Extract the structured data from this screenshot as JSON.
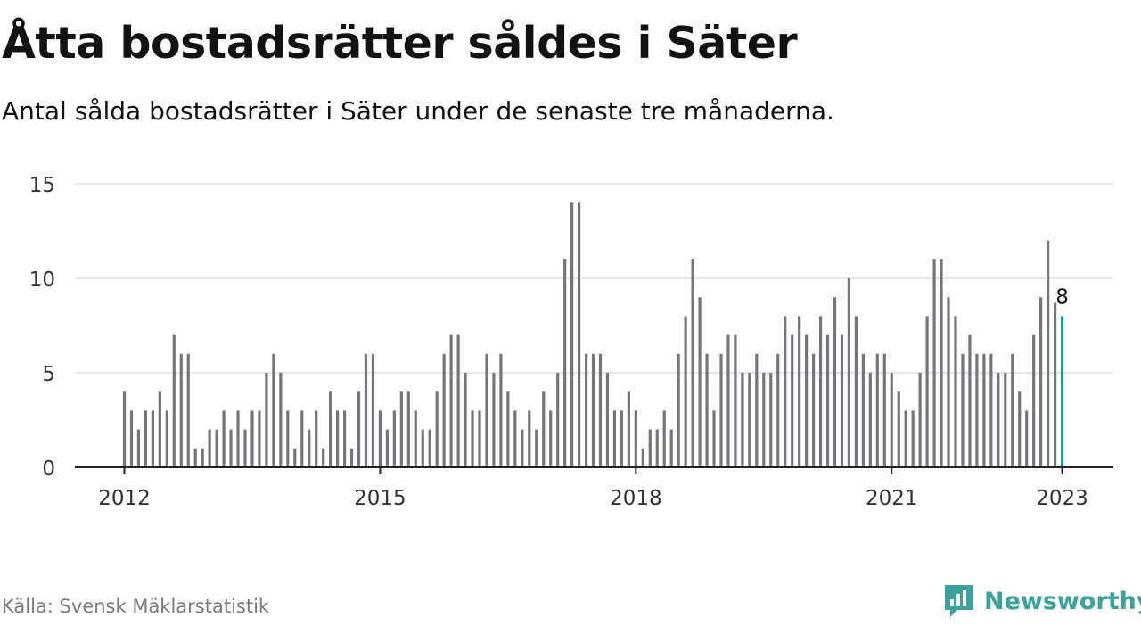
{
  "header": {
    "title": "Åtta bostadsrätter såldes i Säter",
    "subtitle": "Antal sålda bostadsrätter i Säter under de senaste tre månaderna."
  },
  "footer": {
    "source": "Källa: Svensk Mäklarstatistik",
    "brand": "Newsworthy",
    "brand_icon": "newsworthy-logo-icon"
  },
  "colors": {
    "bar": "#75757c",
    "highlight": "#1a9b95",
    "grid": "#dddddd",
    "axis": "#222222",
    "brand": "#3aa39a"
  },
  "chart_data": {
    "type": "bar",
    "title": "Åtta bostadsrätter såldes i Säter",
    "subtitle": "Antal sålda bostadsrätter i Säter under de senaste tre månaderna.",
    "x_start": "2012-01",
    "x_interval": "month",
    "x_ticks": [
      "2012",
      "2015",
      "2018",
      "2021",
      "2023"
    ],
    "y_ticks": [
      0,
      5,
      10,
      15
    ],
    "ylim": [
      0,
      15
    ],
    "grid": true,
    "highlight_label": "8",
    "series": [
      {
        "values": [
          4,
          3,
          2,
          3,
          3,
          4,
          3,
          7,
          6,
          6,
          1,
          1,
          2,
          2,
          3,
          2,
          3,
          2,
          3,
          3,
          5,
          6,
          5,
          3,
          1,
          3,
          2,
          3,
          1,
          4,
          3,
          3,
          1,
          4,
          6,
          6,
          3,
          2,
          3,
          4,
          4,
          3,
          2,
          2,
          4,
          6,
          7,
          7,
          5,
          3,
          3,
          6,
          5,
          6,
          4,
          3,
          2,
          3,
          2,
          4,
          3,
          5,
          11,
          14,
          14,
          6,
          6,
          6,
          5,
          3,
          3,
          4,
          3,
          1,
          2,
          2,
          3,
          2,
          6,
          8,
          11,
          9,
          6,
          3,
          6,
          7,
          7,
          5,
          5,
          6,
          5,
          5,
          6,
          8,
          7,
          8,
          7,
          6,
          8,
          7,
          9,
          7,
          10,
          8,
          6,
          5,
          6,
          6,
          5,
          4,
          3,
          3,
          5,
          8,
          11,
          11,
          9,
          8,
          6,
          7,
          6,
          6,
          6,
          5,
          5,
          6,
          4,
          3,
          7,
          9,
          12,
          8.7,
          8
        ]
      }
    ]
  }
}
